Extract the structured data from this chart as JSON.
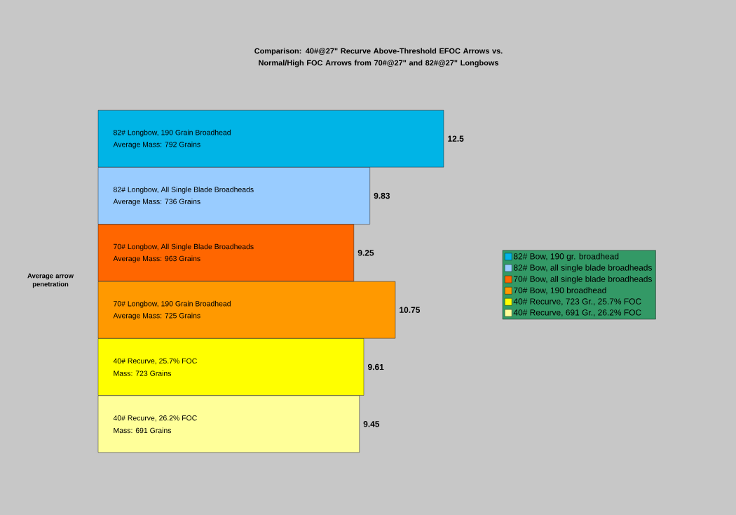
{
  "chart_data": {
    "type": "bar",
    "orientation": "horizontal",
    "title": "Comparison: 40#@27\" Recurve Above-Threshold EFOC Arrows vs. Normal/High FOC Arrows from 70#@27\" and 82#@27\" Longbows",
    "ylabel": "Average arrow penetration",
    "categories": [
      "82# Longbow, 190 Grain Broadhead",
      "82# Longbow, All Single Blade Broadheads",
      "70# Longbow, All Single Blade Broadheads",
      "70# Longbow, 190 Grain Broadhead",
      "40# Recurve, 25.7% FOC",
      "40# Recurve, 26.2% FOC"
    ],
    "annotations": [
      "Average Mass: 792 Grains",
      "Average Mass: 736 Grains",
      "Average Mass: 963 Grains",
      "Average Mass: 725 Grains",
      "Mass: 723 Grains",
      "Mass: 691 Grains"
    ],
    "series": [
      {
        "name": "82# Bow, 190 gr. broadhead",
        "color": "#00b4e6",
        "values": [
          12.5,
          null,
          null,
          null,
          null,
          null
        ]
      },
      {
        "name": "82# Bow, all single blade broadheads",
        "color": "#99ccff",
        "values": [
          null,
          9.83,
          null,
          null,
          null,
          null
        ]
      },
      {
        "name": "70# Bow, all single blade broadheads",
        "color": "#ff6600",
        "values": [
          null,
          null,
          9.25,
          null,
          null,
          null
        ]
      },
      {
        "name": "70# Bow, 190 broadhead",
        "color": "#ff9900",
        "values": [
          null,
          null,
          null,
          10.75,
          null,
          null
        ]
      },
      {
        "name": "40# Recurve, 723 Gr., 25.7% FOC",
        "color": "#ffff00",
        "values": [
          null,
          null,
          null,
          null,
          9.61,
          null
        ]
      },
      {
        "name": "40# Recurve, 691 Gr., 26.2% FOC",
        "color": "#ffff99",
        "values": [
          null,
          null,
          null,
          null,
          null,
          9.45
        ]
      }
    ],
    "data_labels": true,
    "legend": "right"
  }
}
